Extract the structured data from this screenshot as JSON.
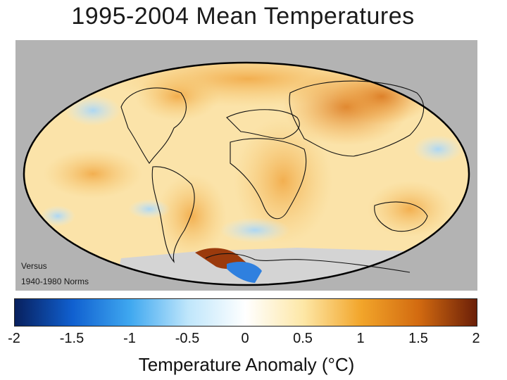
{
  "title": "1995-2004 Mean Temperatures",
  "note": {
    "line1": "Versus",
    "line2": "1940-1980 Norms"
  },
  "colorbar": {
    "label": "Temperature Anomaly (°C)",
    "ticks": [
      "-2",
      "-1.5",
      "-1",
      "-0.5",
      "0",
      "0.5",
      "1",
      "1.5",
      "2"
    ],
    "range": [
      -2,
      2
    ],
    "colors": [
      "#08205e",
      "#1060d0",
      "#3fa8f0",
      "#bfe6fb",
      "#ffffff",
      "#fde7a6",
      "#f2a52a",
      "#d26a10",
      "#6b1f08"
    ]
  },
  "map": {
    "projection": "mollweide",
    "background_color": "#b3b3b3",
    "ocean_color": "#fbe3a9",
    "warm_color": "#f0a640",
    "hot_color": "#c86010",
    "cool_color": "#cfe8f8",
    "cold_color": "#3b8fe0",
    "missing_color": "#d4d4d4"
  }
}
